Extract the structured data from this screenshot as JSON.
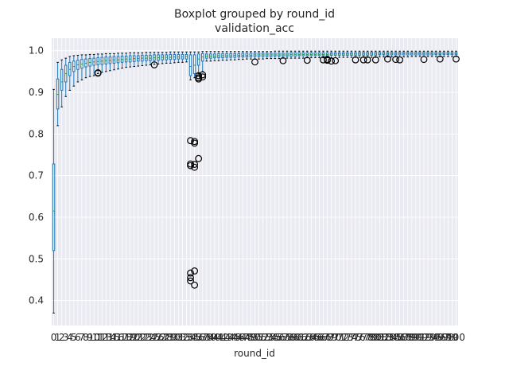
{
  "chart_data": {
    "type": "boxplot",
    "title": "Boxplot grouped by round_id",
    "subtitle": "validation_acc",
    "xlabel": "round_id",
    "ylabel": "",
    "ylim": [
      0.34,
      1.03
    ],
    "yticks": [
      0.4,
      0.5,
      0.6,
      0.7,
      0.8,
      0.9,
      1.0
    ],
    "grid": true,
    "legend": "none",
    "colors": {
      "background": "#eaeaf2",
      "grid": "#ffffff",
      "box": "#1f77b4",
      "median": "#2ca02c",
      "outlier": "#000000"
    },
    "categories": [
      "0",
      "1",
      "2",
      "3",
      "4",
      "5",
      "6",
      "7",
      "8",
      "9",
      "10",
      "11",
      "12",
      "13",
      "14",
      "15",
      "16",
      "17",
      "18",
      "19",
      "20",
      "21",
      "22",
      "23",
      "24",
      "25",
      "26",
      "27",
      "28",
      "29",
      "30",
      "31",
      "32",
      "33",
      "34",
      "35",
      "36",
      "37",
      "38",
      "39",
      "40",
      "41",
      "42",
      "43",
      "44",
      "45",
      "46",
      "47",
      "48",
      "49",
      "50",
      "51",
      "52",
      "53",
      "54",
      "55",
      "56",
      "57",
      "58",
      "59",
      "60",
      "61",
      "62",
      "63",
      "64",
      "65",
      "66",
      "67",
      "68",
      "69",
      "70",
      "71",
      "72",
      "73",
      "74",
      "75",
      "76",
      "77",
      "78",
      "79",
      "80",
      "81",
      "82",
      "83",
      "84",
      "85",
      "86",
      "87",
      "88",
      "89",
      "90",
      "91",
      "92",
      "93",
      "94",
      "95",
      "96",
      "97",
      "98",
      "99",
      "100"
    ],
    "boxes": [
      {
        "whislo": 0.37,
        "q1": 0.52,
        "med": 0.615,
        "q3": 0.728,
        "whishi": 0.907,
        "fliers": []
      },
      {
        "whislo": 0.82,
        "q1": 0.86,
        "med": 0.895,
        "q3": 0.932,
        "whishi": 0.972,
        "fliers": []
      },
      {
        "whislo": 0.865,
        "q1": 0.905,
        "med": 0.925,
        "q3": 0.955,
        "whishi": 0.978,
        "fliers": []
      },
      {
        "whislo": 0.89,
        "q1": 0.925,
        "med": 0.945,
        "q3": 0.965,
        "whishi": 0.982,
        "fliers": []
      },
      {
        "whislo": 0.905,
        "q1": 0.94,
        "med": 0.955,
        "q3": 0.972,
        "whishi": 0.986,
        "fliers": []
      },
      {
        "whislo": 0.915,
        "q1": 0.95,
        "med": 0.962,
        "q3": 0.975,
        "whishi": 0.988,
        "fliers": []
      },
      {
        "whislo": 0.925,
        "q1": 0.955,
        "med": 0.966,
        "q3": 0.977,
        "whishi": 0.989,
        "fliers": []
      },
      {
        "whislo": 0.93,
        "q1": 0.958,
        "med": 0.968,
        "q3": 0.979,
        "whishi": 0.99,
        "fliers": []
      },
      {
        "whislo": 0.935,
        "q1": 0.961,
        "med": 0.97,
        "q3": 0.98,
        "whishi": 0.99,
        "fliers": []
      },
      {
        "whislo": 0.938,
        "q1": 0.963,
        "med": 0.972,
        "q3": 0.981,
        "whishi": 0.991,
        "fliers": []
      },
      {
        "whislo": 0.94,
        "q1": 0.965,
        "med": 0.973,
        "q3": 0.982,
        "whishi": 0.991,
        "fliers": []
      },
      {
        "whislo": 0.945,
        "q1": 0.966,
        "med": 0.974,
        "q3": 0.983,
        "whishi": 0.992,
        "fliers": [
          0.946,
          0.947
        ]
      },
      {
        "whislo": 0.948,
        "q1": 0.967,
        "med": 0.975,
        "q3": 0.984,
        "whishi": 0.992,
        "fliers": []
      },
      {
        "whislo": 0.95,
        "q1": 0.968,
        "med": 0.976,
        "q3": 0.985,
        "whishi": 0.993,
        "fliers": []
      },
      {
        "whislo": 0.952,
        "q1": 0.969,
        "med": 0.977,
        "q3": 0.985,
        "whishi": 0.993,
        "fliers": []
      },
      {
        "whislo": 0.954,
        "q1": 0.97,
        "med": 0.978,
        "q3": 0.986,
        "whishi": 0.993,
        "fliers": []
      },
      {
        "whislo": 0.956,
        "q1": 0.971,
        "med": 0.978,
        "q3": 0.986,
        "whishi": 0.994,
        "fliers": []
      },
      {
        "whislo": 0.958,
        "q1": 0.972,
        "med": 0.979,
        "q3": 0.987,
        "whishi": 0.994,
        "fliers": []
      },
      {
        "whislo": 0.96,
        "q1": 0.973,
        "med": 0.98,
        "q3": 0.987,
        "whishi": 0.994,
        "fliers": []
      },
      {
        "whislo": 0.961,
        "q1": 0.973,
        "med": 0.98,
        "q3": 0.988,
        "whishi": 0.995,
        "fliers": []
      },
      {
        "whislo": 0.962,
        "q1": 0.974,
        "med": 0.981,
        "q3": 0.988,
        "whishi": 0.995,
        "fliers": []
      },
      {
        "whislo": 0.963,
        "q1": 0.975,
        "med": 0.981,
        "q3": 0.988,
        "whishi": 0.995,
        "fliers": []
      },
      {
        "whislo": 0.964,
        "q1": 0.975,
        "med": 0.982,
        "q3": 0.989,
        "whishi": 0.995,
        "fliers": []
      },
      {
        "whislo": 0.965,
        "q1": 0.976,
        "med": 0.982,
        "q3": 0.989,
        "whishi": 0.996,
        "fliers": []
      },
      {
        "whislo": 0.966,
        "q1": 0.976,
        "med": 0.982,
        "q3": 0.989,
        "whishi": 0.996,
        "fliers": []
      },
      {
        "whislo": 0.967,
        "q1": 0.977,
        "med": 0.983,
        "q3": 0.99,
        "whishi": 0.996,
        "fliers": [
          0.966
        ]
      },
      {
        "whislo": 0.968,
        "q1": 0.977,
        "med": 0.983,
        "q3": 0.99,
        "whishi": 0.996,
        "fliers": []
      },
      {
        "whislo": 0.969,
        "q1": 0.978,
        "med": 0.984,
        "q3": 0.99,
        "whishi": 0.996,
        "fliers": []
      },
      {
        "whislo": 0.97,
        "q1": 0.978,
        "med": 0.984,
        "q3": 0.99,
        "whishi": 0.996,
        "fliers": []
      },
      {
        "whislo": 0.97,
        "q1": 0.979,
        "med": 0.984,
        "q3": 0.991,
        "whishi": 0.997,
        "fliers": []
      },
      {
        "whislo": 0.971,
        "q1": 0.979,
        "med": 0.985,
        "q3": 0.991,
        "whishi": 0.997,
        "fliers": []
      },
      {
        "whislo": 0.972,
        "q1": 0.98,
        "med": 0.985,
        "q3": 0.991,
        "whishi": 0.997,
        "fliers": []
      },
      {
        "whislo": 0.972,
        "q1": 0.98,
        "med": 0.985,
        "q3": 0.991,
        "whishi": 0.997,
        "fliers": []
      },
      {
        "whislo": 0.973,
        "q1": 0.98,
        "med": 0.986,
        "q3": 0.991,
        "whishi": 0.997,
        "fliers": []
      },
      {
        "whislo": 0.93,
        "q1": 0.94,
        "med": 0.962,
        "q3": 0.99,
        "whishi": 0.997,
        "fliers": [
          0.784,
          0.728,
          0.724,
          0.466,
          0.455,
          0.447
        ]
      },
      {
        "whislo": 0.935,
        "q1": 0.945,
        "med": 0.965,
        "q3": 0.99,
        "whishi": 0.997,
        "fliers": [
          0.782,
          0.778,
          0.727,
          0.72,
          0.471,
          0.437
        ]
      },
      {
        "whislo": 0.945,
        "q1": 0.965,
        "med": 0.98,
        "q3": 0.992,
        "whishi": 0.997,
        "fliers": [
          0.94,
          0.935,
          0.932,
          0.741
        ]
      },
      {
        "whislo": 0.95,
        "q1": 0.975,
        "med": 0.985,
        "q3": 0.993,
        "whishi": 0.998,
        "fliers": [
          0.942,
          0.937
        ]
      },
      {
        "whislo": 0.975,
        "q1": 0.982,
        "med": 0.987,
        "q3": 0.992,
        "whishi": 0.998,
        "fliers": []
      },
      {
        "whislo": 0.975,
        "q1": 0.982,
        "med": 0.987,
        "q3": 0.992,
        "whishi": 0.998,
        "fliers": []
      },
      {
        "whislo": 0.976,
        "q1": 0.983,
        "med": 0.987,
        "q3": 0.992,
        "whishi": 0.998,
        "fliers": []
      },
      {
        "whislo": 0.976,
        "q1": 0.983,
        "med": 0.988,
        "q3": 0.993,
        "whishi": 0.998,
        "fliers": []
      },
      {
        "whislo": 0.977,
        "q1": 0.983,
        "med": 0.988,
        "q3": 0.993,
        "whishi": 0.998,
        "fliers": []
      },
      {
        "whislo": 0.977,
        "q1": 0.984,
        "med": 0.988,
        "q3": 0.993,
        "whishi": 0.998,
        "fliers": []
      },
      {
        "whislo": 0.978,
        "q1": 0.984,
        "med": 0.988,
        "q3": 0.993,
        "whishi": 0.998,
        "fliers": []
      },
      {
        "whislo": 0.978,
        "q1": 0.984,
        "med": 0.989,
        "q3": 0.993,
        "whishi": 0.998,
        "fliers": []
      },
      {
        "whislo": 0.979,
        "q1": 0.985,
        "med": 0.989,
        "q3": 0.993,
        "whishi": 0.998,
        "fliers": []
      },
      {
        "whislo": 0.979,
        "q1": 0.985,
        "med": 0.989,
        "q3": 0.994,
        "whishi": 0.998,
        "fliers": []
      },
      {
        "whislo": 0.98,
        "q1": 0.985,
        "med": 0.989,
        "q3": 0.994,
        "whishi": 0.998,
        "fliers": []
      },
      {
        "whislo": 0.98,
        "q1": 0.985,
        "med": 0.989,
        "q3": 0.994,
        "whishi": 0.998,
        "fliers": []
      },
      {
        "whislo": 0.98,
        "q1": 0.986,
        "med": 0.99,
        "q3": 0.994,
        "whishi": 0.998,
        "fliers": [
          0.973
        ]
      },
      {
        "whislo": 0.98,
        "q1": 0.986,
        "med": 0.99,
        "q3": 0.994,
        "whishi": 0.998,
        "fliers": []
      },
      {
        "whislo": 0.98,
        "q1": 0.986,
        "med": 0.99,
        "q3": 0.994,
        "whishi": 0.998,
        "fliers": []
      },
      {
        "whislo": 0.981,
        "q1": 0.986,
        "med": 0.99,
        "q3": 0.994,
        "whishi": 0.998,
        "fliers": []
      },
      {
        "whislo": 0.981,
        "q1": 0.986,
        "med": 0.99,
        "q3": 0.994,
        "whishi": 0.998,
        "fliers": []
      },
      {
        "whislo": 0.981,
        "q1": 0.987,
        "med": 0.99,
        "q3": 0.994,
        "whishi": 0.999,
        "fliers": []
      },
      {
        "whislo": 0.981,
        "q1": 0.987,
        "med": 0.99,
        "q3": 0.994,
        "whishi": 0.999,
        "fliers": []
      },
      {
        "whislo": 0.982,
        "q1": 0.987,
        "med": 0.99,
        "q3": 0.994,
        "whishi": 0.999,
        "fliers": [
          0.976
        ]
      },
      {
        "whislo": 0.982,
        "q1": 0.987,
        "med": 0.99,
        "q3": 0.994,
        "whishi": 0.999,
        "fliers": []
      },
      {
        "whislo": 0.982,
        "q1": 0.987,
        "med": 0.991,
        "q3": 0.995,
        "whishi": 0.999,
        "fliers": []
      },
      {
        "whislo": 0.982,
        "q1": 0.987,
        "med": 0.991,
        "q3": 0.995,
        "whishi": 0.999,
        "fliers": []
      },
      {
        "whislo": 0.982,
        "q1": 0.988,
        "med": 0.991,
        "q3": 0.995,
        "whishi": 0.999,
        "fliers": []
      },
      {
        "whislo": 0.982,
        "q1": 0.988,
        "med": 0.991,
        "q3": 0.995,
        "whishi": 0.999,
        "fliers": []
      },
      {
        "whislo": 0.983,
        "q1": 0.988,
        "med": 0.991,
        "q3": 0.995,
        "whishi": 0.999,
        "fliers": [
          0.977
        ]
      },
      {
        "whislo": 0.983,
        "q1": 0.988,
        "med": 0.991,
        "q3": 0.995,
        "whishi": 0.999,
        "fliers": []
      },
      {
        "whislo": 0.983,
        "q1": 0.988,
        "med": 0.991,
        "q3": 0.995,
        "whishi": 0.999,
        "fliers": []
      },
      {
        "whislo": 0.983,
        "q1": 0.988,
        "med": 0.991,
        "q3": 0.995,
        "whishi": 0.999,
        "fliers": []
      },
      {
        "whislo": 0.983,
        "q1": 0.988,
        "med": 0.991,
        "q3": 0.995,
        "whishi": 0.999,
        "fliers": [
          0.978
        ]
      },
      {
        "whislo": 0.983,
        "q1": 0.988,
        "med": 0.991,
        "q3": 0.995,
        "whishi": 0.999,
        "fliers": [
          0.977,
          0.979
        ]
      },
      {
        "whislo": 0.983,
        "q1": 0.989,
        "med": 0.992,
        "q3": 0.995,
        "whishi": 0.999,
        "fliers": [
          0.975
        ]
      },
      {
        "whislo": 0.983,
        "q1": 0.989,
        "med": 0.992,
        "q3": 0.995,
        "whishi": 0.999,
        "fliers": [
          0.976
        ]
      },
      {
        "whislo": 0.984,
        "q1": 0.989,
        "med": 0.992,
        "q3": 0.995,
        "whishi": 0.999,
        "fliers": []
      },
      {
        "whislo": 0.984,
        "q1": 0.989,
        "med": 0.992,
        "q3": 0.995,
        "whishi": 0.999,
        "fliers": []
      },
      {
        "whislo": 0.984,
        "q1": 0.989,
        "med": 0.992,
        "q3": 0.995,
        "whishi": 0.999,
        "fliers": []
      },
      {
        "whislo": 0.984,
        "q1": 0.989,
        "med": 0.992,
        "q3": 0.995,
        "whishi": 0.999,
        "fliers": []
      },
      {
        "whislo": 0.984,
        "q1": 0.989,
        "med": 0.992,
        "q3": 0.995,
        "whishi": 0.999,
        "fliers": [
          0.978
        ]
      },
      {
        "whislo": 0.984,
        "q1": 0.989,
        "med": 0.992,
        "q3": 0.996,
        "whishi": 0.999,
        "fliers": []
      },
      {
        "whislo": 0.984,
        "q1": 0.989,
        "med": 0.992,
        "q3": 0.996,
        "whishi": 0.999,
        "fliers": [
          0.978
        ]
      },
      {
        "whislo": 0.984,
        "q1": 0.989,
        "med": 0.992,
        "q3": 0.996,
        "whishi": 0.999,
        "fliers": [
          0.978
        ]
      },
      {
        "whislo": 0.984,
        "q1": 0.989,
        "med": 0.992,
        "q3": 0.996,
        "whishi": 0.999,
        "fliers": []
      },
      {
        "whislo": 0.984,
        "q1": 0.989,
        "med": 0.992,
        "q3": 0.996,
        "whishi": 0.999,
        "fliers": [
          0.978
        ]
      },
      {
        "whislo": 0.985,
        "q1": 0.99,
        "med": 0.992,
        "q3": 0.996,
        "whishi": 0.999,
        "fliers": []
      },
      {
        "whislo": 0.985,
        "q1": 0.99,
        "med": 0.992,
        "q3": 0.996,
        "whishi": 0.999,
        "fliers": []
      },
      {
        "whislo": 0.985,
        "q1": 0.99,
        "med": 0.993,
        "q3": 0.996,
        "whishi": 0.999,
        "fliers": [
          0.98
        ]
      },
      {
        "whislo": 0.985,
        "q1": 0.99,
        "med": 0.993,
        "q3": 0.996,
        "whishi": 0.999,
        "fliers": []
      },
      {
        "whislo": 0.985,
        "q1": 0.99,
        "med": 0.993,
        "q3": 0.996,
        "whishi": 0.999,
        "fliers": [
          0.979
        ]
      },
      {
        "whislo": 0.985,
        "q1": 0.99,
        "med": 0.993,
        "q3": 0.996,
        "whishi": 0.999,
        "fliers": [
          0.978
        ]
      },
      {
        "whislo": 0.985,
        "q1": 0.99,
        "med": 0.993,
        "q3": 0.996,
        "whishi": 0.999,
        "fliers": []
      },
      {
        "whislo": 0.985,
        "q1": 0.99,
        "med": 0.993,
        "q3": 0.996,
        "whishi": 0.999,
        "fliers": []
      },
      {
        "whislo": 0.986,
        "q1": 0.99,
        "med": 0.993,
        "q3": 0.996,
        "whishi": 0.999,
        "fliers": []
      },
      {
        "whislo": 0.986,
        "q1": 0.99,
        "med": 0.993,
        "q3": 0.996,
        "whishi": 0.999,
        "fliers": []
      },
      {
        "whislo": 0.986,
        "q1": 0.99,
        "med": 0.993,
        "q3": 0.996,
        "whishi": 0.999,
        "fliers": []
      },
      {
        "whislo": 0.986,
        "q1": 0.99,
        "med": 0.993,
        "q3": 0.996,
        "whishi": 0.999,
        "fliers": [
          0.979
        ]
      },
      {
        "whislo": 0.986,
        "q1": 0.99,
        "med": 0.993,
        "q3": 0.996,
        "whishi": 0.999,
        "fliers": []
      },
      {
        "whislo": 0.986,
        "q1": 0.99,
        "med": 0.993,
        "q3": 0.996,
        "whishi": 0.999,
        "fliers": []
      },
      {
        "whislo": 0.986,
        "q1": 0.991,
        "med": 0.993,
        "q3": 0.996,
        "whishi": 0.999,
        "fliers": []
      },
      {
        "whislo": 0.986,
        "q1": 0.991,
        "med": 0.993,
        "q3": 0.996,
        "whishi": 0.999,
        "fliers": [
          0.98
        ]
      },
      {
        "whislo": 0.986,
        "q1": 0.991,
        "med": 0.993,
        "q3": 0.996,
        "whishi": 0.999,
        "fliers": []
      },
      {
        "whislo": 0.986,
        "q1": 0.991,
        "med": 0.993,
        "q3": 0.996,
        "whishi": 0.999,
        "fliers": []
      },
      {
        "whislo": 0.986,
        "q1": 0.991,
        "med": 0.993,
        "q3": 0.996,
        "whishi": 0.999,
        "fliers": []
      },
      {
        "whislo": 0.986,
        "q1": 0.991,
        "med": 0.993,
        "q3": 0.996,
        "whishi": 0.999,
        "fliers": [
          0.98
        ]
      }
    ]
  }
}
